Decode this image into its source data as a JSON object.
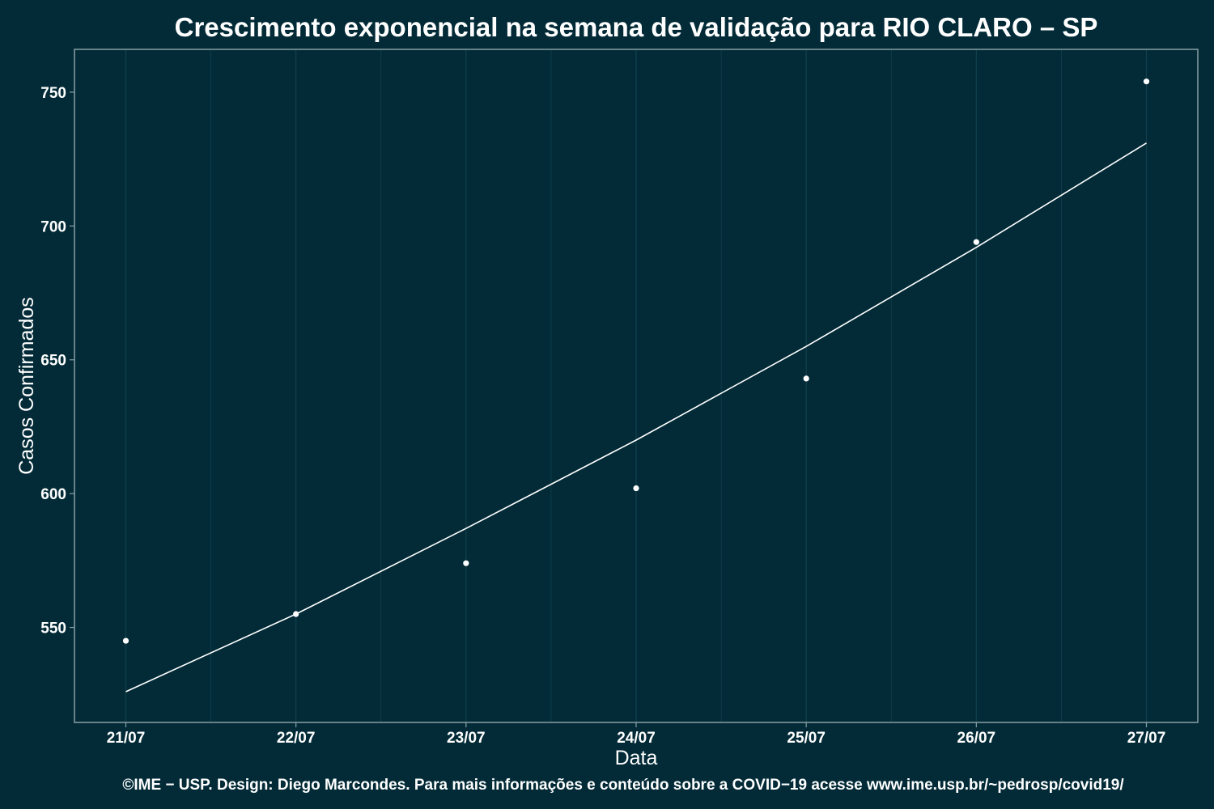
{
  "chart_data": {
    "type": "scatter",
    "title": "Crescimento exponencial na semana de validação para RIO CLARO – SP",
    "xlabel": "Data",
    "ylabel": "Casos Confirmados",
    "caption": "©IME − USP. Design: Diego Marcondes. Para mais informações e conteúdo sobre a COVID−19 acesse www.ime.usp.br/~pedrosp/covid19/",
    "categories": [
      "21/07",
      "22/07",
      "23/07",
      "24/07",
      "25/07",
      "26/07",
      "27/07"
    ],
    "y_ticks": [
      550,
      600,
      650,
      700,
      750
    ],
    "ylim": [
      514.5,
      766
    ],
    "grid": true,
    "series": [
      {
        "kind": "points",
        "values": [
          545,
          555,
          574,
          602,
          643,
          694,
          754
        ]
      },
      {
        "kind": "fitted-line",
        "values": [
          526,
          555,
          587,
          620,
          655,
          692,
          731
        ]
      }
    ],
    "colors": {
      "background": "#022b37",
      "grid": "#12404c",
      "panel_border": "#8aa0a6",
      "marks": "#ffffff"
    }
  }
}
